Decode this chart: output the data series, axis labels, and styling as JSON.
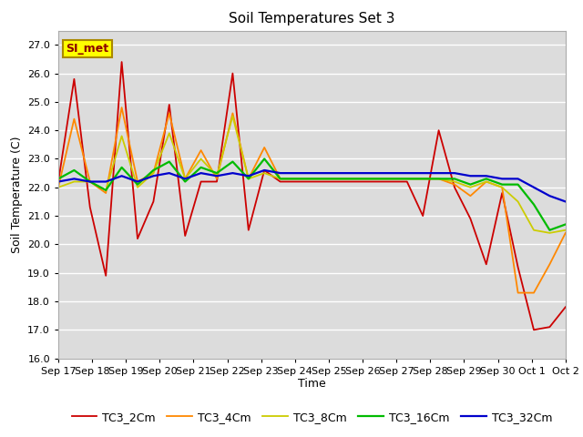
{
  "title": "Soil Temperatures Set 3",
  "xlabel": "Time",
  "ylabel": "Soil Temperature (C)",
  "ylim": [
    16.0,
    27.5
  ],
  "ytick_min": 16.0,
  "ytick_max": 27.0,
  "ytick_step": 1.0,
  "annotation": "SI_met",
  "bg_color": "#dcdcdc",
  "fig_color": "#ffffff",
  "series_colors": {
    "TC3_2Cm": "#cc0000",
    "TC3_4Cm": "#ff8800",
    "TC3_8Cm": "#cccc00",
    "TC3_16Cm": "#00bb00",
    "TC3_32Cm": "#0000cc"
  },
  "x_labels": [
    "Sep 17",
    "Sep 18",
    "Sep 19",
    "Sep 20",
    "Sep 21",
    "Sep 22",
    "Sep 23",
    "Sep 24",
    "Sep 25",
    "Sep 26",
    "Sep 27",
    "Sep 28",
    "Sep 29",
    "Sep 30",
    "Oct 1",
    "Oct 2"
  ],
  "n_days": 16,
  "TC3_2Cm": [
    22.2,
    25.8,
    21.3,
    18.9,
    26.4,
    20.2,
    21.5,
    24.9,
    20.3,
    22.2,
    22.2,
    26.0,
    20.5,
    22.6,
    22.2,
    22.2,
    22.2,
    22.2,
    22.2,
    22.2,
    22.2,
    22.2,
    22.2,
    21.0,
    24.0,
    22.0,
    20.9,
    19.3,
    21.8,
    19.2,
    17.0,
    17.1,
    17.8
  ],
  "TC3_4Cm": [
    22.0,
    24.4,
    22.2,
    21.8,
    24.8,
    22.2,
    22.5,
    24.6,
    22.3,
    23.3,
    22.3,
    24.6,
    22.3,
    23.4,
    22.3,
    22.3,
    22.3,
    22.3,
    22.3,
    22.3,
    22.3,
    22.3,
    22.3,
    22.3,
    22.3,
    22.1,
    21.7,
    22.2,
    22.0,
    18.3,
    18.3,
    19.3,
    20.4
  ],
  "TC3_8Cm": [
    22.0,
    22.2,
    22.2,
    21.9,
    23.8,
    22.0,
    22.5,
    23.9,
    22.3,
    23.0,
    22.4,
    24.5,
    22.3,
    22.5,
    22.3,
    22.3,
    22.3,
    22.3,
    22.3,
    22.3,
    22.3,
    22.3,
    22.3,
    22.3,
    22.3,
    22.2,
    22.0,
    22.2,
    22.0,
    21.5,
    20.5,
    20.4,
    20.5
  ],
  "TC3_16Cm": [
    22.3,
    22.6,
    22.2,
    21.9,
    22.7,
    22.1,
    22.6,
    22.9,
    22.2,
    22.7,
    22.5,
    22.9,
    22.3,
    23.0,
    22.3,
    22.3,
    22.3,
    22.3,
    22.3,
    22.3,
    22.3,
    22.3,
    22.3,
    22.3,
    22.3,
    22.3,
    22.1,
    22.3,
    22.1,
    22.1,
    21.4,
    20.5,
    20.7
  ],
  "TC3_32Cm": [
    22.2,
    22.3,
    22.2,
    22.2,
    22.4,
    22.2,
    22.4,
    22.5,
    22.3,
    22.5,
    22.4,
    22.5,
    22.4,
    22.6,
    22.5,
    22.5,
    22.5,
    22.5,
    22.5,
    22.5,
    22.5,
    22.5,
    22.5,
    22.5,
    22.5,
    22.5,
    22.4,
    22.4,
    22.3,
    22.3,
    22.0,
    21.7,
    21.5
  ],
  "title_fontsize": 11,
  "axis_label_fontsize": 9,
  "tick_fontsize": 8,
  "legend_fontsize": 9,
  "linewidth": 1.3,
  "grid_color": "#ffffff",
  "grid_linewidth": 1.0,
  "spine_color": "#aaaaaa"
}
